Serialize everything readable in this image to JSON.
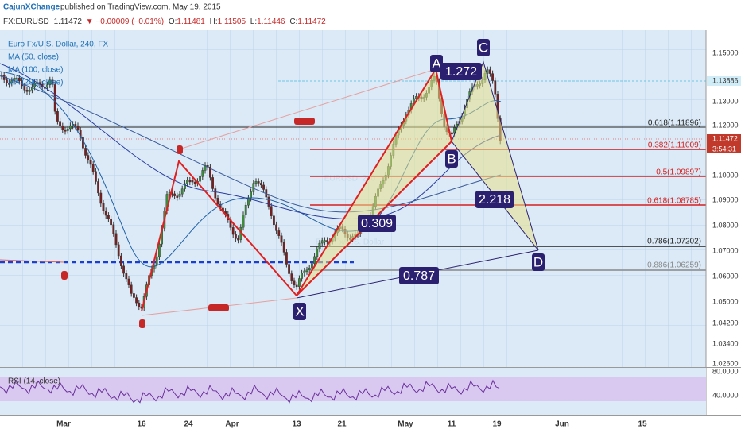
{
  "header": {
    "author": "CajunXChange",
    "published": "published on TradingView.com, May 19, 2015",
    "symbol": "FX:EURUSD",
    "price": "1.11472",
    "change": "−0.00009 (−0.01%)",
    "open_label": "O:",
    "open": "1.11481",
    "high_label": "H:",
    "high": "1.11505",
    "low_label": "L:",
    "low": "1.11446",
    "close_label": "C:",
    "close": "1.11472"
  },
  "legend": [
    "Euro Fx/U.S. Dollar, 240, FX",
    "MA (50, close)",
    "MA (100, close)",
    "MA (200, close)"
  ],
  "watermark": {
    "symbol": "EURUSD, 240",
    "name": "Euro Fx/U.S. Dollar"
  },
  "points": [
    "X",
    "A",
    "B",
    "C",
    "D"
  ],
  "ratios": [
    "1.272",
    "0.309",
    "2.218",
    "0.787"
  ],
  "fib_levels": [
    "0.618(1.11896)",
    "0.382(1.11009)",
    "0.5(1.09897)",
    "0.618(1.08785)",
    "0.786(1.07202)",
    "0.886(1.06259)"
  ],
  "price_axis": [
    "1.15000",
    "1.13886",
    "1.13000",
    "1.12000",
    "1.11472",
    "3:54:31",
    "1.10000",
    "1.09000",
    "1.08000",
    "1.07000",
    "1.06000",
    "1.05000",
    "1.04200",
    "1.03400",
    "1.02600"
  ],
  "rsi": {
    "label": "RSI (14, close)",
    "ticks": [
      "80.0000",
      "40.0000"
    ]
  },
  "date_axis": [
    "Mar",
    "16",
    "24",
    "Apr",
    "13",
    "21",
    "May",
    "11",
    "19",
    "Jun",
    "15"
  ]
}
